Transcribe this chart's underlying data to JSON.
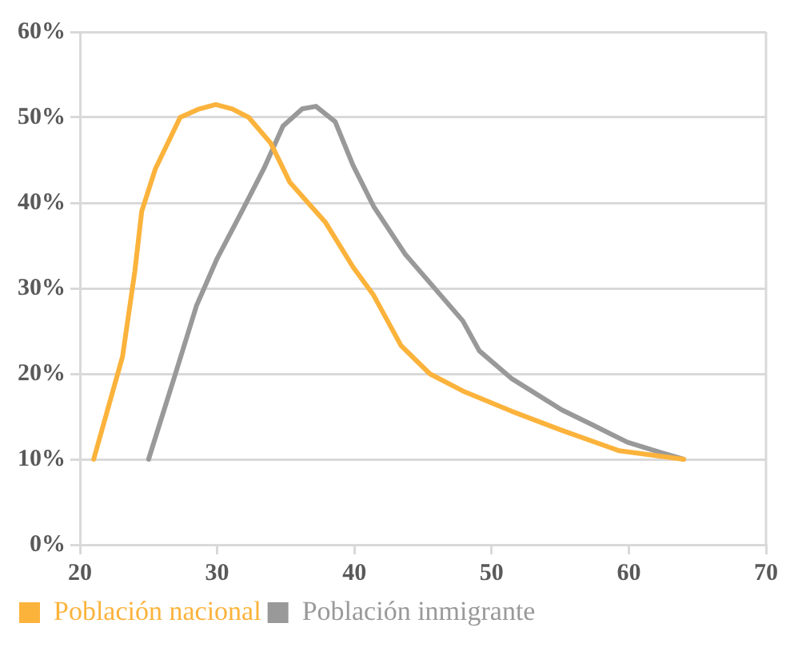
{
  "chart_data": {
    "type": "line",
    "xlim": [
      20,
      70
    ],
    "xticks": [
      20,
      30,
      40,
      50,
      60,
      70
    ],
    "ylim": [
      0,
      60
    ],
    "yticks": [
      {
        "value": 0,
        "label": "0%"
      },
      {
        "value": 10,
        "label": "10%"
      },
      {
        "value": 20,
        "label": "20%"
      },
      {
        "value": 30,
        "label": "30%"
      },
      {
        "value": 40,
        "label": "40%"
      },
      {
        "value": 50,
        "label": "50%"
      },
      {
        "value": 60,
        "label": "60%"
      }
    ],
    "grid": "y",
    "legend": "bottom",
    "marker": "none",
    "line_style": "solid",
    "series": [
      {
        "name": "Población nacional",
        "color": "#fbb33c",
        "x": [
          21,
          23.1,
          24,
          24.5,
          25.5,
          27.3,
          28.7,
          29.9,
          31.1,
          32.3,
          33.9,
          35.3,
          37.9,
          39.9,
          41.4,
          43.4,
          45.5,
          47.9,
          51.5,
          55.1,
          59.3,
          64
        ],
        "values": [
          10,
          22,
          32,
          39,
          44,
          50,
          51,
          51.5,
          51,
          50,
          47,
          42.4,
          37.7,
          32.5,
          29.2,
          23.3,
          20,
          18,
          15.6,
          13.4,
          11,
          10
        ]
      },
      {
        "name": "Población inmigrante",
        "color": "#999999",
        "x": [
          25,
          26.9,
          28.5,
          30,
          31.8,
          33.4,
          34.8,
          36.2,
          37.2,
          38.6,
          39.9,
          41.4,
          43.7,
          47.9,
          49.1,
          51.5,
          55.1,
          57.4,
          59.9,
          62.3,
          64
        ],
        "values": [
          10,
          19.7,
          28,
          33.5,
          39,
          44,
          49,
          51,
          51.3,
          49.5,
          44.4,
          39.6,
          34,
          26.2,
          22.7,
          19.4,
          15.8,
          14,
          12,
          10.8,
          10
        ]
      }
    ]
  }
}
